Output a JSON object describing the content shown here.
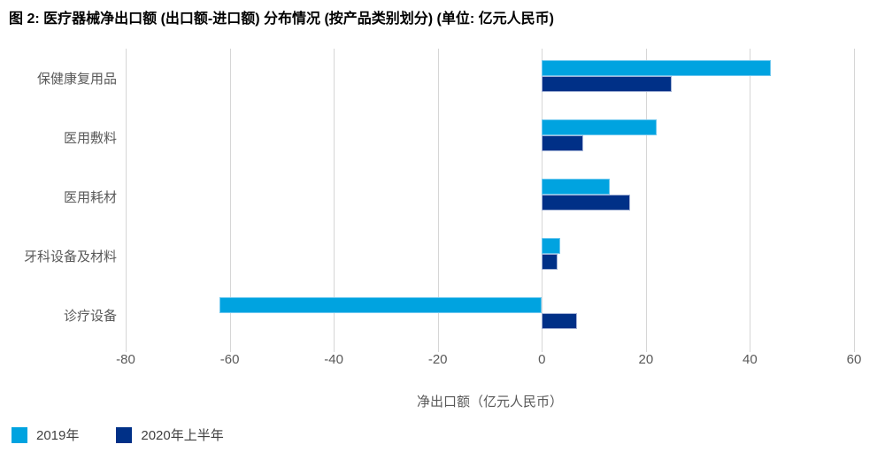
{
  "page": {
    "title": "图 2: 医疗器械净出口额 (出口额-进口额) 分布情况 (按产品类别划分) (单位: 亿元人民币)"
  },
  "chart_data": {
    "type": "bar",
    "orientation": "horizontal",
    "title": "图 2: 医疗器械净出口额 (出口额-进口额) 分布情况 (按产品类别划分) (单位: 亿元人民币)",
    "categories": [
      "保健康复用品",
      "医用敷料",
      "医用耗材",
      "牙科设备及材料",
      "诊疗设备"
    ],
    "series": [
      {
        "name": "2019年",
        "color": "#00a3e0",
        "border_color": "#6dc8ef",
        "values": [
          44,
          22,
          13,
          3.5,
          -62
        ]
      },
      {
        "name": "2020年上半年",
        "color": "#003087",
        "border_color": "#a3b2d6",
        "values": [
          25,
          8,
          17,
          3,
          6.7
        ]
      }
    ],
    "xlabel": "净出口额（亿元人民币）",
    "x_ticks": [
      -80,
      -60,
      -40,
      -20,
      0,
      20,
      40,
      60
    ],
    "xlim": [
      -80,
      60
    ],
    "grid": "vertical-gridlines",
    "gridline_color": "#d6d6d6",
    "legend_position": "bottom-left",
    "text_color": "#595959"
  }
}
